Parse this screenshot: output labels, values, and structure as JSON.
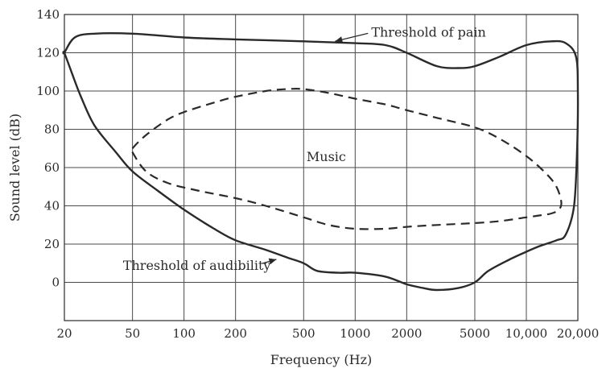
{
  "chart_data": {
    "type": "line",
    "title": "",
    "xlabel": "Frequency (Hz)",
    "ylabel": "Sound level (dB)",
    "x_scale": "log",
    "xlim": [
      20,
      20000
    ],
    "ylim": [
      -20,
      140
    ],
    "grid": true,
    "legend": "none",
    "x_ticks": [
      20,
      50,
      100,
      200,
      500,
      1000,
      2000,
      5000,
      10000,
      20000
    ],
    "x_tick_labels": [
      "20",
      "50",
      "100",
      "200",
      "500",
      "1000",
      "2000",
      "5000",
      "10,000",
      "20,000"
    ],
    "y_ticks": [
      0,
      20,
      40,
      60,
      80,
      100,
      120,
      140
    ],
    "y_tick_labels": [
      "0",
      "20",
      "40",
      "60",
      "80",
      "100",
      "120",
      "140"
    ],
    "series": [
      {
        "style": "solid",
        "x": [
          20,
          23,
          30,
          50,
          100,
          200,
          500,
          1000,
          1500,
          2000,
          3000,
          4000,
          5000,
          7000,
          10000,
          14000,
          17000,
          19500,
          20000,
          19800,
          19000,
          17000,
          15000,
          12000,
          10000,
          8000,
          6000,
          5000,
          4000,
          3000,
          2500,
          2000,
          1500,
          1000,
          800,
          600,
          500,
          400,
          300,
          200,
          150,
          100,
          70,
          50,
          40,
          30,
          25,
          22,
          20
        ],
        "y": [
          120,
          128,
          130,
          130,
          128,
          127,
          126,
          125,
          124,
          120,
          113,
          112,
          113,
          118,
          124,
          126,
          125,
          118,
          100,
          70,
          40,
          25,
          22,
          19,
          16,
          12,
          6,
          0,
          -3,
          -4,
          -3,
          -1,
          3,
          5,
          5,
          6,
          10,
          13,
          17,
          22,
          28,
          38,
          48,
          58,
          68,
          82,
          97,
          110,
          120
        ],
        "annotation": "Threshold of pain"
      },
      {
        "style": "solid",
        "annotation": "Threshold of audibility"
      },
      {
        "style": "dashed",
        "x": [
          50,
          60,
          80,
          100,
          150,
          200,
          300,
          400,
          500,
          700,
          1000,
          1500,
          2000,
          3000,
          5000,
          7000,
          10000,
          13000,
          15000,
          16000,
          15500,
          14000,
          12000,
          10000,
          7000,
          5000,
          3000,
          2000,
          1500,
          1000,
          700,
          500,
          300,
          200,
          120,
          80,
          60,
          50
        ],
        "y": [
          70,
          77,
          85,
          89,
          94,
          97,
          100,
          101,
          101,
          99,
          96,
          93,
          90,
          86,
          81,
          75,
          66,
          57,
          50,
          42,
          38,
          36,
          35,
          34,
          32,
          31,
          30,
          29,
          28,
          28,
          30,
          34,
          40,
          44,
          48,
          52,
          58,
          68
        ],
        "annotation": "Music"
      }
    ]
  }
}
